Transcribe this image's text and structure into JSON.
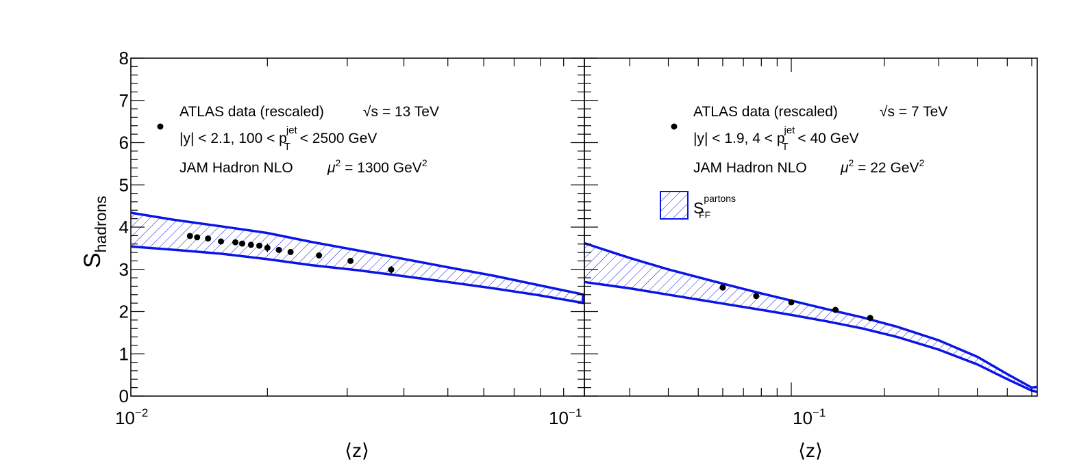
{
  "figure": {
    "ylabel_main": "S",
    "ylabel_sub": "hadrons",
    "xlabel": "⟨z⟩",
    "y_ticks": [
      "0",
      "1",
      "2",
      "3",
      "4",
      "5",
      "6",
      "7",
      "8"
    ],
    "accent_color": "#0a14e6"
  },
  "chart_data": [
    {
      "type": "scatter",
      "panel": "left",
      "x_scale": "log",
      "xlim": [
        0.01,
        0.1
      ],
      "ylim": [
        0,
        8
      ],
      "x_tick_labels": [
        {
          "base": "10",
          "exp": "−2"
        },
        {
          "base": "10",
          "exp": "−1"
        }
      ],
      "legend": {
        "data_label": "ATLAS data (rescaled)",
        "energy": "√s = 13 TeV",
        "cuts": {
          "y_part": "|y| < 2.1, 100 < p",
          "sub": "T",
          "sup": "jet",
          "range_part": " < 2500 GeV"
        },
        "theory": {
          "name": "JAM Hadron NLO",
          "mu_prefix": "μ",
          "mu_power": "2",
          "mu_value": " = 1300 GeV",
          "unit_power": "2"
        }
      },
      "series": [
        {
          "name": "ATLAS data (rescaled)",
          "marker": "circle",
          "points": [
            {
              "x": 0.0135,
              "y": 3.79,
              "err": 0.03
            },
            {
              "x": 0.014,
              "y": 3.76,
              "err": 0.03
            },
            {
              "x": 0.0148,
              "y": 3.73,
              "err": 0.03
            },
            {
              "x": 0.0158,
              "y": 3.66,
              "err": 0.03
            },
            {
              "x": 0.017,
              "y": 3.64,
              "err": 0.03
            },
            {
              "x": 0.0176,
              "y": 3.61,
              "err": 0.03
            },
            {
              "x": 0.0184,
              "y": 3.58,
              "err": 0.03
            },
            {
              "x": 0.0192,
              "y": 3.56,
              "err": 0.03
            },
            {
              "x": 0.02,
              "y": 3.51,
              "err": 0.1
            },
            {
              "x": 0.0212,
              "y": 3.46,
              "err": 0.05
            },
            {
              "x": 0.0225,
              "y": 3.41,
              "err": 0.04
            },
            {
              "x": 0.026,
              "y": 3.33,
              "err": 0.04
            },
            {
              "x": 0.0305,
              "y": 3.2,
              "err": 0.05
            },
            {
              "x": 0.0375,
              "y": 2.99,
              "err": 0.09
            }
          ]
        },
        {
          "name": "S_FF partons band",
          "type": "band",
          "x": [
            0.01,
            0.0125,
            0.0158,
            0.02,
            0.025,
            0.0316,
            0.0398,
            0.05,
            0.063,
            0.079,
            0.1
          ],
          "upper": [
            4.34,
            4.17,
            4.02,
            3.86,
            3.65,
            3.45,
            3.25,
            3.05,
            2.85,
            2.63,
            2.4
          ],
          "lower": [
            3.54,
            3.46,
            3.37,
            3.24,
            3.1,
            2.98,
            2.84,
            2.7,
            2.55,
            2.39,
            2.2
          ]
        }
      ]
    },
    {
      "type": "scatter",
      "panel": "right",
      "x_scale": "log",
      "xlim": [
        0.0214,
        0.625
      ],
      "ylim": [
        0,
        8
      ],
      "x_tick_labels": [
        {
          "base": "10",
          "exp": "−1"
        }
      ],
      "legend": {
        "data_label": "ATLAS data (rescaled)",
        "energy": "√s = 7 TeV",
        "cuts": {
          "y_part": "|y| < 1.9, 4 < p",
          "sub": "T",
          "sup": "jet",
          "range_part": " < 40 GeV"
        },
        "theory": {
          "name": "JAM Hadron NLO",
          "mu_prefix": "μ",
          "mu_power": "2",
          "mu_value": " = 22 GeV",
          "unit_power": "2"
        },
        "band_label": {
          "main": "S",
          "sub": "FF",
          "sup": "partons"
        }
      },
      "series": [
        {
          "name": "ATLAS data (rescaled)",
          "marker": "circle",
          "points": [
            {
              "x": 0.06,
              "y": 2.57,
              "err": 0.03
            },
            {
              "x": 0.077,
              "y": 2.37,
              "err": 0.03
            },
            {
              "x": 0.1,
              "y": 2.22,
              "err": 0.03
            },
            {
              "x": 0.139,
              "y": 2.04,
              "err": 0.03
            },
            {
              "x": 0.18,
              "y": 1.85,
              "err": 0.03
            }
          ]
        },
        {
          "name": "S_FF partons band",
          "type": "band",
          "x": [
            0.0214,
            0.03,
            0.04,
            0.06,
            0.08,
            0.1,
            0.13,
            0.17,
            0.22,
            0.3,
            0.4,
            0.5,
            0.6,
            0.625
          ],
          "upper": [
            3.62,
            3.27,
            3.0,
            2.66,
            2.43,
            2.26,
            2.06,
            1.86,
            1.64,
            1.32,
            0.93,
            0.52,
            0.2,
            0.22
          ],
          "lower": [
            2.7,
            2.55,
            2.4,
            2.19,
            2.04,
            1.92,
            1.77,
            1.6,
            1.4,
            1.1,
            0.75,
            0.4,
            0.13,
            0.1
          ]
        }
      ]
    }
  ]
}
